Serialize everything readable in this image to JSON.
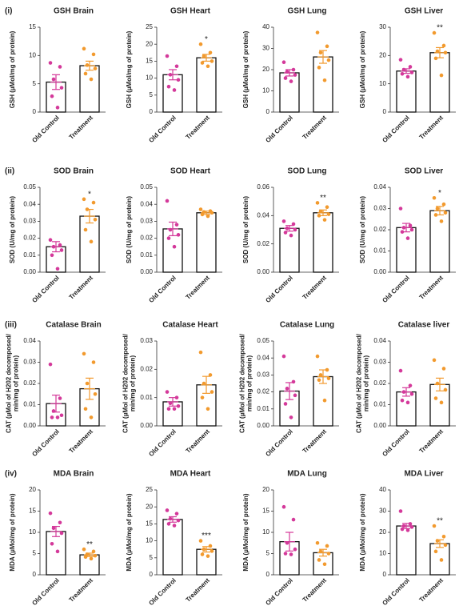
{
  "panel_labels": [
    "(i)",
    "(ii)",
    "(iii)",
    "(iv)"
  ],
  "point_colors": [
    "#d4399a",
    "#f29a2e"
  ],
  "chart_data": [
    {
      "type": "bar",
      "title": "GSH Brain",
      "ylabel": [
        "GSH (µMol/mg of protein)"
      ],
      "categories": [
        "Old Control",
        "Treatment"
      ],
      "values": [
        5.3,
        8.2
      ],
      "errors": [
        1.3,
        0.8
      ],
      "points": [
        [
          8.7,
          8.0,
          5.8,
          4.3,
          2.8,
          0.8
        ],
        [
          11.2,
          10.2,
          8.3,
          7.7,
          6.8,
          5.8
        ]
      ],
      "ylim": [
        0,
        15
      ],
      "yticks": [
        0,
        5,
        10,
        15
      ]
    },
    {
      "type": "bar",
      "title": "GSH Heart",
      "ylabel": [
        "GSH (µMol/mg of protein)"
      ],
      "categories": [
        "Old Control",
        "Treatment"
      ],
      "values": [
        11,
        16
      ],
      "errors": [
        1.5,
        1
      ],
      "points": [
        [
          16.5,
          13.5,
          11,
          9.5,
          7.5,
          6.5
        ],
        [
          20,
          17.5,
          16.5,
          15,
          14.5,
          13.5
        ]
      ],
      "ylim": [
        0,
        25
      ],
      "yticks": [
        0,
        5,
        10,
        15,
        20,
        25
      ],
      "significance": "*"
    },
    {
      "type": "bar",
      "title": "GSH Lung",
      "ylabel": [
        "GSH (µMol/mg of protein)"
      ],
      "categories": [
        "Old Control",
        "Treatment"
      ],
      "values": [
        18.5,
        26
      ],
      "errors": [
        1.5,
        3
      ],
      "points": [
        [
          23.5,
          20,
          19,
          17.5,
          16,
          14.5
        ],
        [
          37.5,
          31,
          28,
          24.5,
          21,
          15
        ]
      ],
      "ylim": [
        0,
        40
      ],
      "yticks": [
        0,
        10,
        20,
        30,
        40
      ]
    },
    {
      "type": "bar",
      "title": "GSH Liver",
      "ylabel": [
        "GSH (µMol/mg of protein)"
      ],
      "categories": [
        "Old Control",
        "Treatment"
      ],
      "values": [
        14.5,
        21
      ],
      "errors": [
        0.8,
        1.8
      ],
      "points": [
        [
          18.5,
          16,
          15,
          14,
          13.5,
          12.5
        ],
        [
          28,
          23.5,
          21.5,
          21,
          19,
          13
        ]
      ],
      "ylim": [
        0,
        30
      ],
      "yticks": [
        0,
        10,
        20,
        30
      ],
      "significance": "**"
    },
    {
      "type": "bar",
      "title": "SOD Brain",
      "ylabel": [
        "SOD (U/mg of protein)"
      ],
      "categories": [
        "Old Control",
        "Treatment"
      ],
      "values": [
        0.015,
        0.033
      ],
      "errors": [
        0.003,
        0.004
      ],
      "points": [
        [
          0.019,
          0.016,
          0.015,
          0.013,
          0.01,
          0.002
        ],
        [
          0.043,
          0.041,
          0.037,
          0.031,
          0.025,
          0.018
        ]
      ],
      "ylim": [
        0,
        0.05
      ],
      "yticks": [
        {
          "value": 0,
          "label": "0.00"
        },
        0.01,
        0.02,
        0.03,
        0.04,
        0.05
      ],
      "significance": "*"
    },
    {
      "type": "bar",
      "title": "SOD Heart",
      "ylabel": [
        "SOD (U/mg of protein)"
      ],
      "categories": [
        "Old Control",
        "Treatment"
      ],
      "values": [
        0.0255,
        0.035
      ],
      "errors": [
        0.004,
        0.001
      ],
      "points": [
        [
          0.042,
          0.028,
          0.025,
          0.022,
          0.02,
          0.015
        ],
        [
          0.037,
          0.036,
          0.0355,
          0.035,
          0.034,
          0.033
        ]
      ],
      "ylim": [
        0,
        0.05
      ],
      "yticks": [
        {
          "value": 0,
          "label": "0.00"
        },
        0.01,
        0.02,
        0.03,
        0.04,
        0.05
      ]
    },
    {
      "type": "bar",
      "title": "SOD Lung",
      "ylabel": [
        "SOD (U/mg of protein)"
      ],
      "categories": [
        "Old Control",
        "Treatment"
      ],
      "values": [
        0.031,
        0.042
      ],
      "errors": [
        0.002,
        0.002
      ],
      "points": [
        [
          0.036,
          0.034,
          0.031,
          0.03,
          0.028,
          0.026
        ],
        [
          0.049,
          0.046,
          0.043,
          0.041,
          0.04,
          0.037
        ]
      ],
      "ylim": [
        0,
        0.06
      ],
      "yticks": [
        {
          "value": 0,
          "label": "0.00"
        },
        0.02,
        0.04,
        0.06
      ],
      "significance": "**"
    },
    {
      "type": "bar",
      "title": "SOD Liver",
      "ylabel": [
        "SOD (U/mg of protein)"
      ],
      "categories": [
        "Old Control",
        "Treatment"
      ],
      "values": [
        0.021,
        0.029
      ],
      "errors": [
        0.002,
        0.002
      ],
      "points": [
        [
          0.03,
          0.022,
          0.021,
          0.02,
          0.019,
          0.016
        ],
        [
          0.035,
          0.032,
          0.03,
          0.028,
          0.027,
          0.024
        ]
      ],
      "ylim": [
        0,
        0.04
      ],
      "yticks": [
        {
          "value": 0,
          "label": "0.00"
        },
        0.01,
        0.02,
        0.03,
        0.04
      ],
      "significance": "*"
    },
    {
      "type": "bar",
      "title": "Catalase Brain",
      "ylabel": [
        "CAT (µMol of H202 decomposed/",
        "min/mg of protein)"
      ],
      "categories": [
        "Old Control",
        "Treatment"
      ],
      "values": [
        0.0105,
        0.0175
      ],
      "errors": [
        0.004,
        0.005
      ],
      "points": [
        [
          0.029,
          0.013,
          0.007,
          0.005,
          0.004,
          0.004
        ],
        [
          0.034,
          0.03,
          0.02,
          0.015,
          0.008,
          0.004
        ]
      ],
      "ylim": [
        0,
        0.04
      ],
      "yticks": [
        {
          "value": 0,
          "label": "0.00"
        },
        0.01,
        0.02,
        0.03,
        0.04
      ]
    },
    {
      "type": "bar",
      "title": "Catalase Heart",
      "ylabel": [
        "CAT (µMol of H202 decomposed/",
        "min/mg of protein)"
      ],
      "categories": [
        "Old Control",
        "Treatment"
      ],
      "values": [
        0.0085,
        0.0145
      ],
      "errors": [
        0.0015,
        0.003
      ],
      "points": [
        [
          0.012,
          0.01,
          0.008,
          0.007,
          0.006,
          0.006
        ],
        [
          0.026,
          0.018,
          0.015,
          0.012,
          0.01,
          0.006
        ]
      ],
      "ylim": [
        0,
        0.03
      ],
      "yticks": [
        {
          "value": 0,
          "label": "0.00"
        },
        0.01,
        0.02,
        0.03
      ]
    },
    {
      "type": "bar",
      "title": "Catalase Lung",
      "ylabel": [
        "CAT (µMol of H202 decomposed/",
        "min/mg of protein)"
      ],
      "categories": [
        "Old Control",
        "Treatment"
      ],
      "values": [
        0.0205,
        0.029
      ],
      "errors": [
        0.005,
        0.004
      ],
      "points": [
        [
          0.041,
          0.026,
          0.022,
          0.018,
          0.013,
          0.005
        ],
        [
          0.041,
          0.033,
          0.03,
          0.028,
          0.027,
          0.015
        ]
      ],
      "ylim": [
        0,
        0.05
      ],
      "yticks": [
        {
          "value": 0,
          "label": "0.00"
        },
        0.01,
        0.02,
        0.03,
        0.04,
        0.05
      ]
    },
    {
      "type": "bar",
      "title": "Catalase liver",
      "ylabel": [
        "CAT (µMol of H202 decomposed/",
        "min/mg of protein)"
      ],
      "categories": [
        "Old Control",
        "Treatment"
      ],
      "values": [
        0.016,
        0.0195
      ],
      "errors": [
        0.002,
        0.003
      ],
      "points": [
        [
          0.026,
          0.019,
          0.016,
          0.015,
          0.012,
          0.011
        ],
        [
          0.031,
          0.027,
          0.02,
          0.017,
          0.013,
          0.011
        ]
      ],
      "ylim": [
        0,
        0.04
      ],
      "yticks": [
        {
          "value": 0,
          "label": "0.00"
        },
        0.01,
        0.02,
        0.03,
        0.04
      ]
    },
    {
      "type": "bar",
      "title": "MDA Brain",
      "ylabel": [
        "MDA (µMol/mg of protein)"
      ],
      "categories": [
        "Old Control",
        "Treatment"
      ],
      "values": [
        10.2,
        4.7
      ],
      "errors": [
        1.2,
        0.4
      ],
      "points": [
        [
          14.5,
          12.3,
          11,
          9.8,
          7.3,
          5.5
        ],
        [
          6,
          5.5,
          4.8,
          4.5,
          4.2,
          3.8
        ]
      ],
      "ylim": [
        0,
        20
      ],
      "yticks": [
        0,
        5,
        10,
        15,
        20
      ],
      "significance": "**"
    },
    {
      "type": "bar",
      "title": "MDA Heart",
      "ylabel": [
        "MDA (µMol/mg of protein)"
      ],
      "categories": [
        "Old Control",
        "Treatment"
      ],
      "values": [
        16.3,
        7.5
      ],
      "errors": [
        0.8,
        0.8
      ],
      "points": [
        [
          19,
          18,
          16.5,
          16,
          15,
          14.5
        ],
        [
          10,
          8.5,
          7.5,
          7,
          6,
          5.5
        ]
      ],
      "ylim": [
        0,
        25
      ],
      "yticks": [
        0,
        5,
        10,
        15,
        20,
        25
      ],
      "significance": "***"
    },
    {
      "type": "bar",
      "title": "MDA Lung",
      "ylabel": [
        "MDA (µMol/mg of protein)"
      ],
      "categories": [
        "Old Control",
        "Treatment"
      ],
      "values": [
        7.8,
        5.2
      ],
      "errors": [
        2.2,
        0.8
      ],
      "points": [
        [
          16,
          13,
          7.5,
          6,
          5,
          4.8
        ],
        [
          7.5,
          6.8,
          5.5,
          5,
          3.5,
          2.5
        ]
      ],
      "ylim": [
        0,
        20
      ],
      "yticks": [
        0,
        5,
        10,
        15,
        20
      ]
    },
    {
      "type": "bar",
      "title": "MDA Liver",
      "ylabel": [
        "MDA (µMol/mg of protein)"
      ],
      "categories": [
        "Old Control",
        "Treatment"
      ],
      "values": [
        23,
        14.7
      ],
      "errors": [
        1.2,
        1.8
      ],
      "points": [
        [
          30,
          24,
          23,
          22.5,
          21.5,
          21
        ],
        [
          23,
          18,
          16,
          14,
          11,
          7
        ]
      ],
      "ylim": [
        0,
        40
      ],
      "yticks": [
        0,
        10,
        20,
        30,
        40
      ],
      "significance": "**"
    }
  ]
}
